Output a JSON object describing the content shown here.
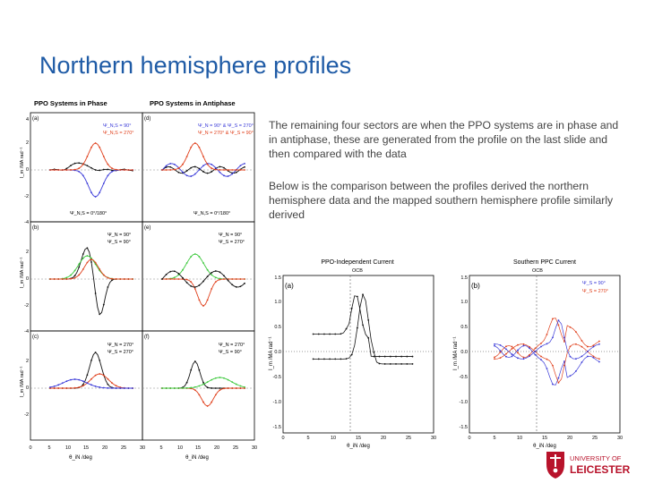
{
  "slide": {
    "title": "Northern hemisphere profiles",
    "paragraph1": "The remaining four sectors are when the PPO systems are in phase and in antiphase, these are generated from the profile on the last slide and then compared with the data",
    "paragraph2": "Below is the comparison between the profiles derived the northern hemisphere data and the mapped southern hemisphere profile similarly derived"
  },
  "left_figure": {
    "col_headers": [
      "PPO Systems in Phase",
      "PPO Systems in Antiphase"
    ],
    "panel_letters": [
      "(a)",
      "(b)",
      "(c)",
      "(d)",
      "(e)",
      "(f)"
    ],
    "legend_a": [
      "Ψ_N,S = 90°",
      "Ψ_N,S = 270°"
    ],
    "legend_d": [
      "Ψ_N = 90° & Ψ_S = 270°",
      "Ψ_N = 270° & Ψ_S = 90°"
    ],
    "psi_a": "Ψ_N,S = 0°/180°",
    "psi_d": "Ψ_N,S = 0°/180°",
    "legend_b": [
      "Ψ_N = 90°",
      "Ψ_S = 90°"
    ],
    "legend_e": [
      "Ψ_N = 90°",
      "Ψ_S = 270°"
    ],
    "legend_c": [
      "Ψ_N = 270°",
      "Ψ_S = 270°"
    ],
    "legend_f": [
      "Ψ_N = 270°",
      "Ψ_S = 90°"
    ],
    "y_label": "I_m /MA rad⁻¹",
    "y_ticks": [
      "4",
      "2",
      "0",
      "-2",
      "-4"
    ],
    "x_ticks": [
      "0",
      "5",
      "10",
      "15",
      "20",
      "25",
      "30"
    ],
    "x_label": "θ_iN /deg"
  },
  "right_figure": {
    "titles": [
      "PPO-Independent Current",
      "Southern PPC Current"
    ],
    "ocb_label": "OCB",
    "panel_letters": [
      "(a)",
      "(b)"
    ],
    "y_ticks": [
      "1.5",
      "1.0",
      "0.5",
      "0.0",
      "-0.5",
      "-1.0",
      "-1.5"
    ],
    "x_ticks": [
      "0",
      "5",
      "10",
      "15",
      "20",
      "25",
      "30"
    ],
    "x_label": "θ_iN /deg",
    "y_label": "I_m /MA rad⁻¹",
    "legend_b": [
      "Ψ_S = 90°",
      "Ψ_S = 270°"
    ]
  },
  "logo": {
    "line1": "UNIVERSITY OF",
    "line2": "LEICESTER"
  },
  "colors": {
    "title": "#1f5ba6",
    "body_text": "#444444",
    "series_black": "#111111",
    "series_blue": "#3a3ad8",
    "series_red": "#e0401c",
    "series_green": "#3cc83c",
    "logo_red": "#b8132b"
  }
}
